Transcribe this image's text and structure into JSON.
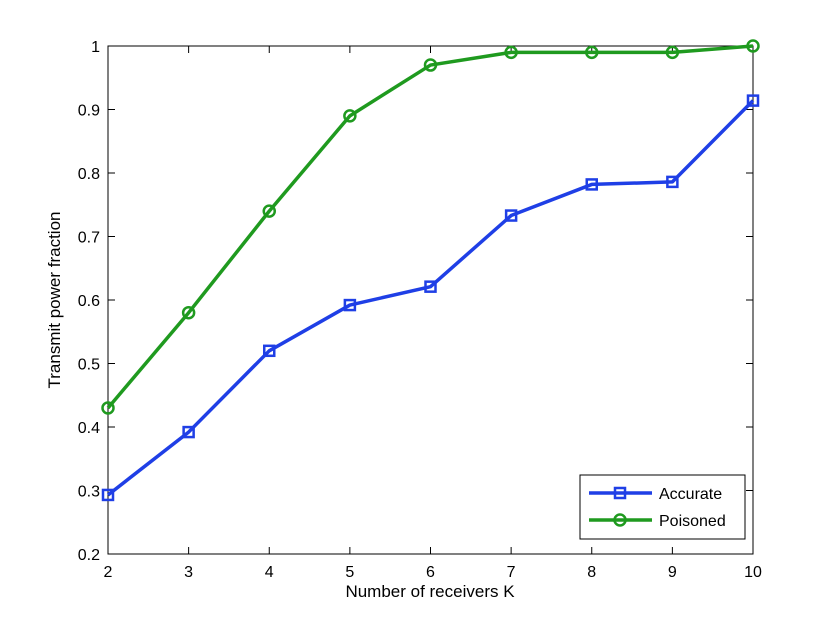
{
  "chart_data": {
    "type": "line",
    "title": "",
    "xlabel": "Number of receivers K",
    "ylabel": "Transmit power fraction",
    "x": [
      2,
      3,
      4,
      5,
      6,
      7,
      8,
      9,
      10
    ],
    "xlim": [
      2,
      10
    ],
    "ylim": [
      0.2,
      1
    ],
    "xticks": [
      "2",
      "3",
      "4",
      "5",
      "6",
      "7",
      "8",
      "9",
      "10"
    ],
    "yticks": [
      "0.2",
      "0.3",
      "0.4",
      "0.5",
      "0.6",
      "0.7",
      "0.8",
      "0.9",
      "1"
    ],
    "grid": false,
    "legend_position": "bottom-right",
    "series": [
      {
        "name": "Accurate",
        "color": "#1f3fe6",
        "marker": "square",
        "values": [
          0.293,
          0.392,
          0.52,
          0.592,
          0.621,
          0.733,
          0.782,
          0.786,
          0.914
        ]
      },
      {
        "name": "Poisoned",
        "color": "#1f9a1f",
        "marker": "circle",
        "values": [
          0.43,
          0.58,
          0.74,
          0.89,
          0.97,
          0.99,
          0.99,
          0.99,
          1.0
        ]
      }
    ]
  }
}
